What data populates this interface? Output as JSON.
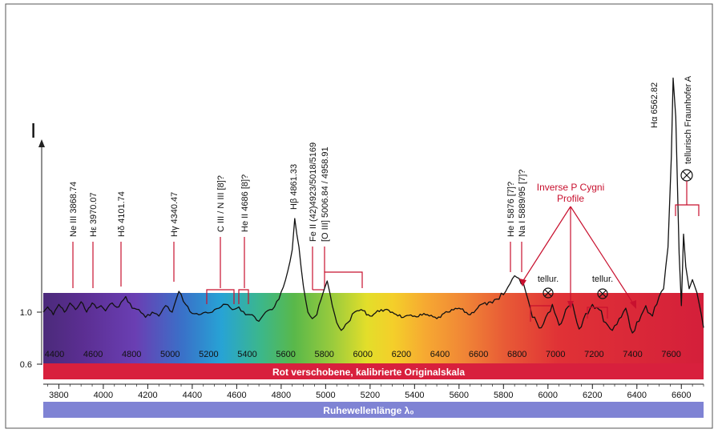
{
  "chart_data": {
    "type": "line",
    "y_axis_symbol": "I",
    "y_ticks": [
      {
        "label": "1.0",
        "value": 1.0
      },
      {
        "label": "0.6",
        "value": 0.6
      }
    ],
    "redshifted_scale": {
      "title": "Rot verschobene, kalibrierte Originalskala",
      "ticks": [
        "4400",
        "4600",
        "4800",
        "5000",
        "5200",
        "5400",
        "5600",
        "5800",
        "6000",
        "6200",
        "6400",
        "6600",
        "6800",
        "7000",
        "7200",
        "7400",
        "7600"
      ]
    },
    "rest_scale": {
      "title": "Ruhewellenlänge λ₀",
      "ticks": [
        "3800",
        "4000",
        "4200",
        "4400",
        "4600",
        "4800",
        "5000",
        "5200",
        "5400",
        "5600",
        "5800",
        "6000",
        "6200",
        "6400",
        "6600"
      ]
    },
    "x_rest_range": [
      3730,
      6700
    ],
    "ylim": [
      0.6,
      2.9
    ],
    "series": [
      {
        "x": [
          3730,
          3750,
          3775,
          3800,
          3825,
          3850,
          3875,
          3900,
          3925,
          3950,
          3970,
          3990,
          4010,
          4040,
          4070,
          4101,
          4130,
          4160,
          4190,
          4220,
          4250,
          4280,
          4310,
          4340,
          4370,
          4400,
          4430,
          4460,
          4490,
          4520,
          4550,
          4580,
          4610,
          4640,
          4670,
          4700,
          4730,
          4760,
          4790,
          4820,
          4850,
          4861,
          4880,
          4900,
          4920,
          4940,
          4960,
          4980,
          5007,
          5030,
          5050,
          5070,
          5100,
          5130,
          5160,
          5200,
          5250,
          5300,
          5350,
          5400,
          5450,
          5500,
          5550,
          5600,
          5650,
          5700,
          5750,
          5780,
          5810,
          5830,
          5850,
          5870,
          5890,
          5910,
          5930,
          5950,
          5970,
          5990,
          6020,
          6050,
          6080,
          6110,
          6140,
          6170,
          6200,
          6230,
          6260,
          6290,
          6320,
          6350,
          6380,
          6410,
          6440,
          6470,
          6500,
          6520,
          6540,
          6555,
          6563,
          6575,
          6590,
          6600,
          6610,
          6620,
          6635,
          6650,
          6670,
          6700
        ],
        "y": [
          1.0,
          1.04,
          0.98,
          1.06,
          1.0,
          1.07,
          1.02,
          1.08,
          1.0,
          1.07,
          1.03,
          1.05,
          1.01,
          1.07,
          1.04,
          1.12,
          1.03,
          1.02,
          0.96,
          1.0,
          0.97,
          1.05,
          1.0,
          1.16,
          1.06,
          0.99,
          0.98,
          1.0,
          1.0,
          1.03,
          1.06,
          1.02,
          1.04,
          0.98,
          0.98,
          0.93,
          1.0,
          1.02,
          1.1,
          1.25,
          1.48,
          1.72,
          1.5,
          1.2,
          1.0,
          0.95,
          0.98,
          1.1,
          1.24,
          1.05,
          0.92,
          0.86,
          0.92,
          1.0,
          1.02,
          0.97,
          1.02,
          1.0,
          0.96,
          0.97,
          0.98,
          0.95,
          1.0,
          1.03,
          0.98,
          1.06,
          1.07,
          1.1,
          1.16,
          1.22,
          1.28,
          1.26,
          1.22,
          1.1,
          0.96,
          0.92,
          0.88,
          0.96,
          1.06,
          0.9,
          1.02,
          1.07,
          0.87,
          0.99,
          1.06,
          1.02,
          0.92,
          0.86,
          0.95,
          1.03,
          0.84,
          0.93,
          1.05,
          0.97,
          1.12,
          1.18,
          1.5,
          2.2,
          2.8,
          2.5,
          1.45,
          1.05,
          1.6,
          1.35,
          1.18,
          1.25,
          1.15,
          0.88
        ]
      }
    ],
    "line_labels": [
      {
        "text": "Ne III 3868.74",
        "x": 3868.74
      },
      {
        "text": "Hε 3970.07",
        "x": 3970.07
      },
      {
        "text": "Hδ 4101.74",
        "x": 4101.74
      },
      {
        "text": "Hγ 4340.47",
        "x": 4340.47
      },
      {
        "text": "C III / N III [8]?",
        "x": 4640
      },
      {
        "text": "He II 4686 [8]?",
        "x": 4686
      },
      {
        "text": "Hβ 4861.33",
        "x": 4861.33
      },
      {
        "text": "Fe II (42)4923/5018/5169",
        "x": 4923
      },
      {
        "text": "[O III] 5006.84 / 4958.91",
        "x": 5006.84
      },
      {
        "text": "He I 5876 [7]?",
        "x": 5876
      },
      {
        "text": "Na I 5889/95 [7]?",
        "x": 5892
      },
      {
        "text": "Hα 6562.82",
        "x": 6562.82
      },
      {
        "text": "tellurisch Fraunhofer A",
        "x": 6640
      }
    ],
    "annotations": [
      {
        "text": "Inverse P Cygni",
        "line2": "Profile"
      },
      {
        "text": "tellur."
      },
      {
        "text": "tellur."
      }
    ]
  }
}
